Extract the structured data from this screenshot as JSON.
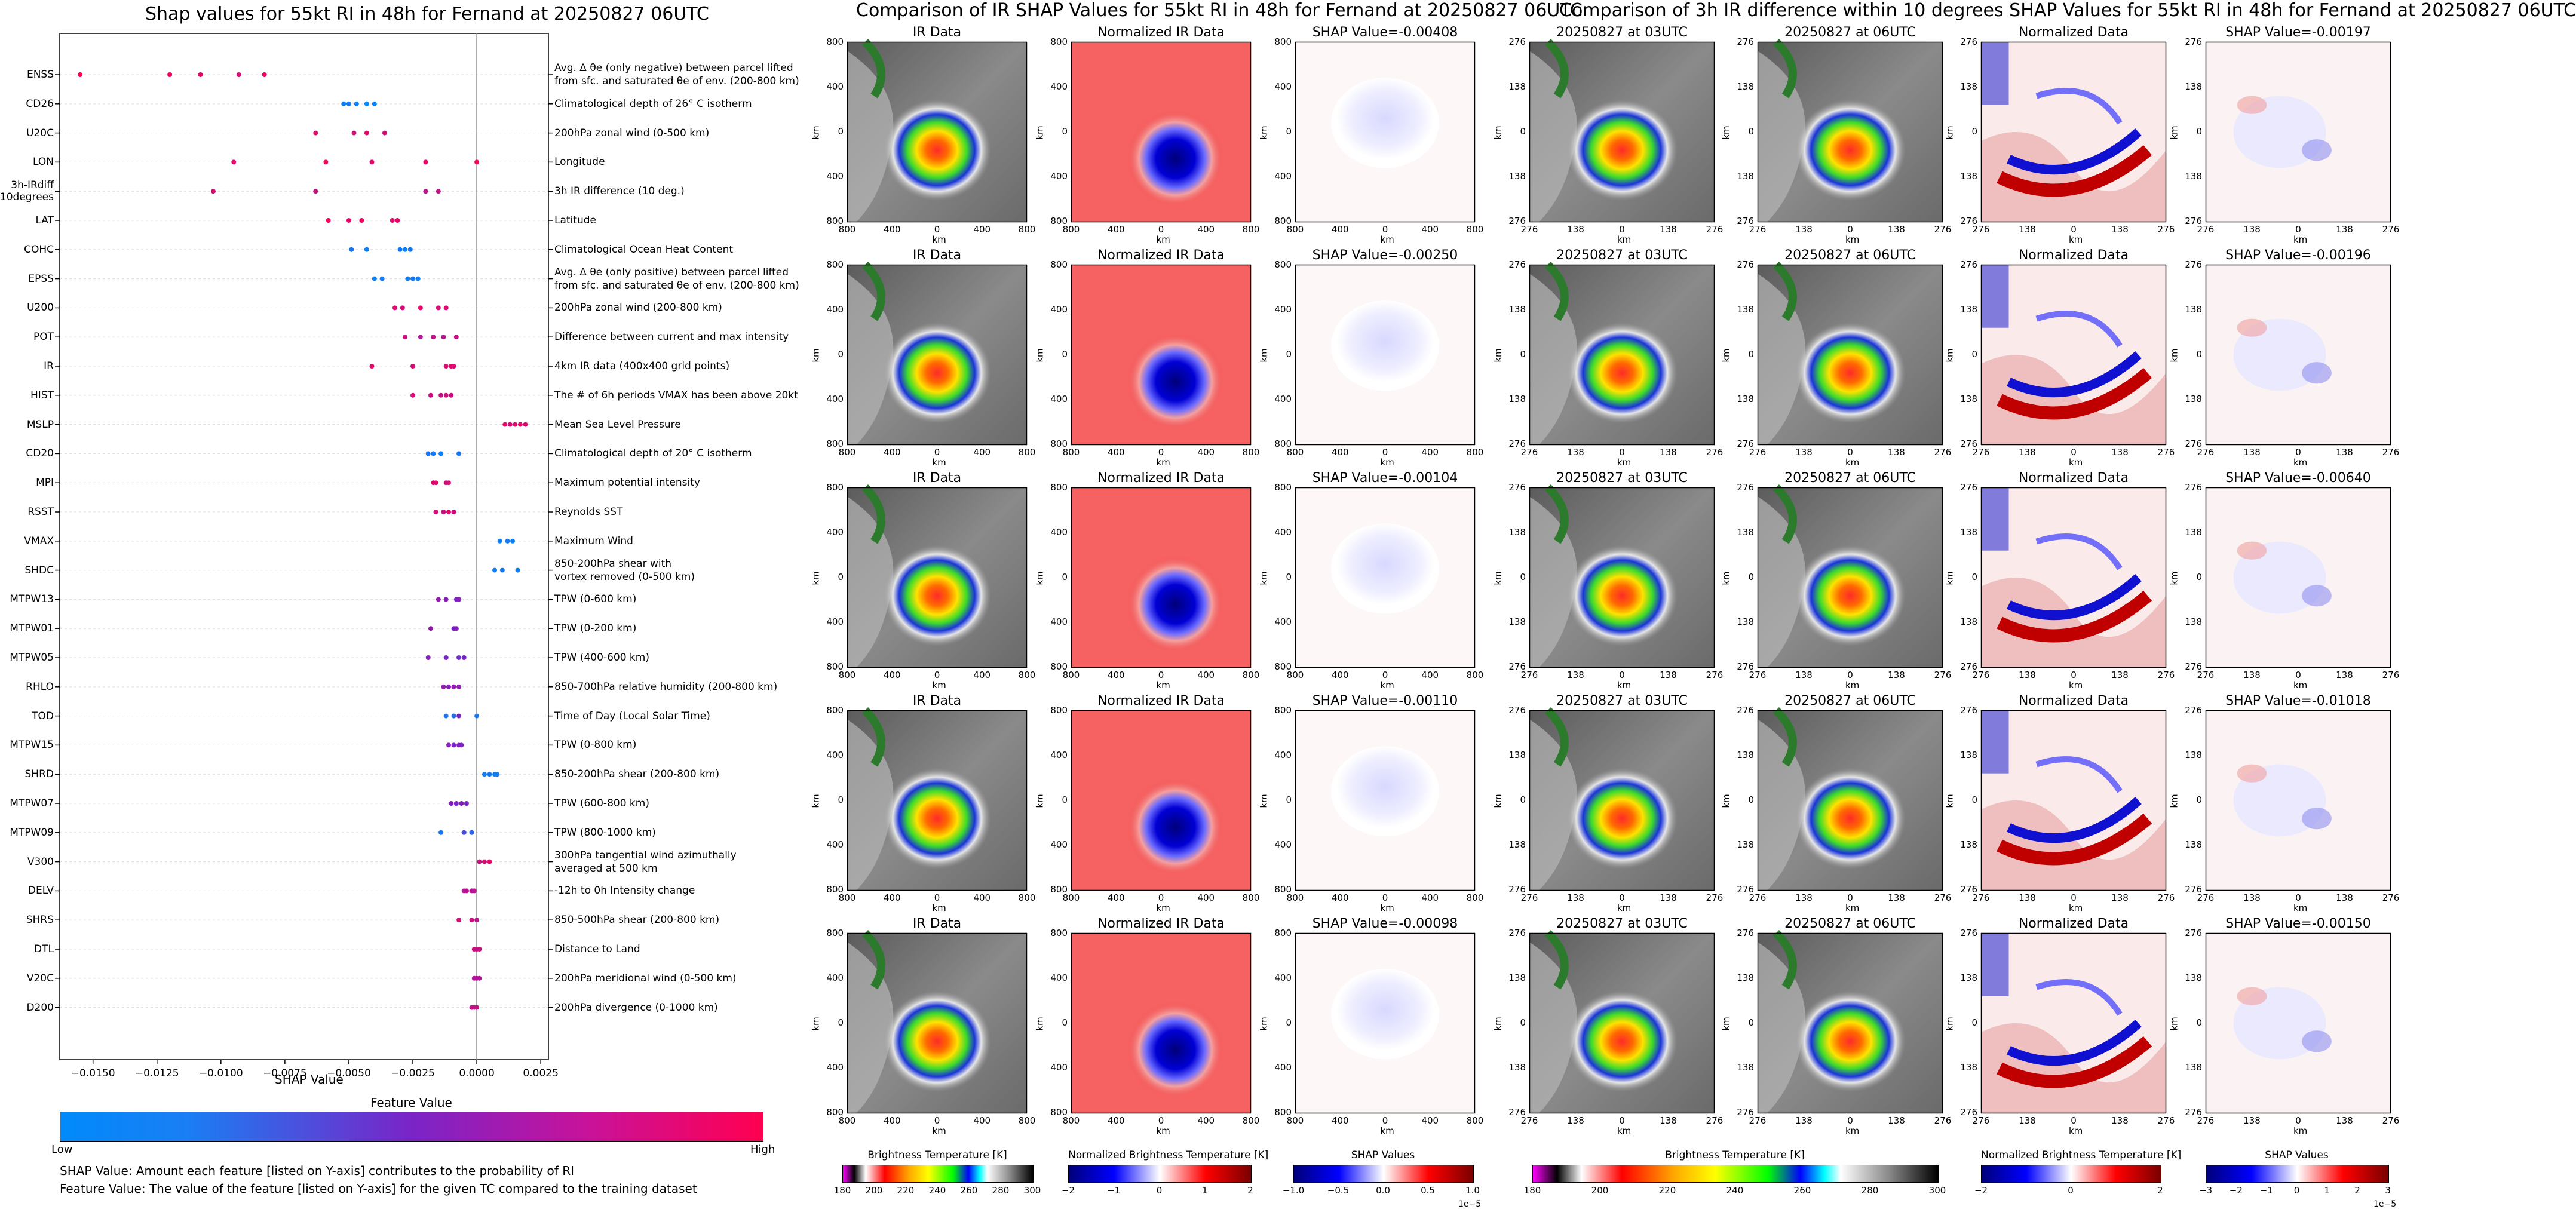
{
  "left": {
    "title": "Shap values for 55kt RI in 48h for Fernand at 20250827 06UTC",
    "xlabel": "SHAP Value",
    "xticks": [
      "−0.0150",
      "−0.0125",
      "−0.0100",
      "−0.0075",
      "−0.0050",
      "−0.0025",
      "0.0000",
      "0.0025"
    ],
    "colorbar_title": "Feature Value",
    "colorbar_low": "Low",
    "colorbar_high": "High",
    "note1": "SHAP Value: Amount each feature [listed on Y-axis] contributes to the probability of RI",
    "note2": "Feature Value: The value of the feature [listed on Y-axis] for the given TC compared to the training dataset"
  },
  "chart_data": {
    "type": "scatter",
    "xlim": [
      -0.0163,
      0.0028
    ],
    "x_tick_values": [
      -0.015,
      -0.0125,
      -0.01,
      -0.0075,
      -0.005,
      -0.0025,
      0,
      0.0025
    ],
    "features": [
      {
        "name": "ENSS",
        "desc": "Avg. Δ θe (only negative) between parcel lifted|from sfc. and saturated θe of env. (200-800 km)",
        "points": [
          [
            -0.0155,
            1.0
          ],
          [
            -0.012,
            0.95
          ],
          [
            -0.0108,
            0.9
          ],
          [
            -0.0093,
            0.85
          ],
          [
            -0.0083,
            0.9
          ]
        ]
      },
      {
        "name": "CD26",
        "desc": "Climatological depth of 26° C isotherm",
        "points": [
          [
            -0.0052,
            0.05
          ],
          [
            -0.005,
            0.1
          ],
          [
            -0.0047,
            0.05
          ],
          [
            -0.0043,
            0.0
          ],
          [
            -0.004,
            0.02
          ]
        ]
      },
      {
        "name": "U20C",
        "desc": "200hPa zonal wind (0-500 km)",
        "points": [
          [
            -0.0063,
            0.9
          ],
          [
            -0.0048,
            0.85
          ],
          [
            -0.0043,
            0.9
          ],
          [
            -0.0036,
            0.85
          ]
        ]
      },
      {
        "name": "LON",
        "desc": "Longitude",
        "points": [
          [
            -0.0095,
            0.9
          ],
          [
            -0.0059,
            0.95
          ],
          [
            -0.0041,
            0.9
          ],
          [
            -0.002,
            0.92
          ],
          [
            0.0,
            0.95
          ]
        ]
      },
      {
        "name": "3h-IRdiff|10degrees",
        "desc": "3h IR difference (10 deg.)",
        "points": [
          [
            -0.0103,
            0.85
          ],
          [
            -0.0063,
            0.8
          ],
          [
            -0.002,
            0.75
          ],
          [
            -0.0015,
            0.78
          ]
        ]
      },
      {
        "name": "LAT",
        "desc": "Latitude",
        "points": [
          [
            -0.0058,
            0.95
          ],
          [
            -0.005,
            0.9
          ],
          [
            -0.0045,
            0.92
          ],
          [
            -0.0033,
            0.88
          ],
          [
            -0.0031,
            0.9
          ]
        ]
      },
      {
        "name": "COHC",
        "desc": "Climatological Ocean Heat Content",
        "points": [
          [
            -0.0049,
            0.1
          ],
          [
            -0.0043,
            0.05
          ],
          [
            -0.003,
            0.08
          ],
          [
            -0.0028,
            0.05
          ],
          [
            -0.0026,
            0.1
          ]
        ]
      },
      {
        "name": "EPSS",
        "desc": "Avg. Δ θe (only positive) between parcel lifted|from sfc. and saturated θe of env. (200-800 km)",
        "points": [
          [
            -0.004,
            0.05
          ],
          [
            -0.0037,
            0.08
          ],
          [
            -0.0027,
            0.05
          ],
          [
            -0.0025,
            0.1
          ],
          [
            -0.0023,
            0.07
          ]
        ]
      },
      {
        "name": "U200",
        "desc": "200hPa zonal wind (200-800 km)",
        "points": [
          [
            -0.0032,
            0.9
          ],
          [
            -0.0029,
            0.85
          ],
          [
            -0.0022,
            0.9
          ],
          [
            -0.0015,
            0.85
          ],
          [
            -0.0012,
            0.88
          ]
        ]
      },
      {
        "name": "POT",
        "desc": "Difference between current and max intensity",
        "points": [
          [
            -0.0028,
            0.8
          ],
          [
            -0.0022,
            0.7
          ],
          [
            -0.0017,
            0.75
          ],
          [
            -0.0013,
            0.72
          ],
          [
            -0.0008,
            0.78
          ]
        ]
      },
      {
        "name": "IR",
        "desc": "4km IR data (400x400 grid points)",
        "points": [
          [
            -0.0041,
            0.9
          ],
          [
            -0.0025,
            0.85
          ],
          [
            -0.0012,
            0.88
          ],
          [
            -0.001,
            0.9
          ],
          [
            -0.0009,
            0.86
          ]
        ]
      },
      {
        "name": "HIST",
        "desc": "The # of 6h periods VMAX has been above 20kt",
        "points": [
          [
            -0.0025,
            0.85
          ],
          [
            -0.0018,
            0.8
          ],
          [
            -0.0014,
            0.78
          ],
          [
            -0.0012,
            0.82
          ],
          [
            -0.001,
            0.8
          ]
        ]
      },
      {
        "name": "MSLP",
        "desc": "Mean Sea Level Pressure",
        "points": [
          [
            0.0011,
            0.9
          ],
          [
            0.0013,
            0.85
          ],
          [
            0.0015,
            0.88
          ],
          [
            0.0017,
            0.9
          ],
          [
            0.0019,
            0.86
          ]
        ]
      },
      {
        "name": "CD20",
        "desc": "Climatological depth of 20° C isotherm",
        "points": [
          [
            -0.0019,
            0.1
          ],
          [
            -0.0017,
            0.08
          ],
          [
            -0.0014,
            0.05
          ],
          [
            -0.0007,
            0.1
          ]
        ]
      },
      {
        "name": "MPI",
        "desc": "Maximum potential intensity",
        "points": [
          [
            -0.0017,
            0.85
          ],
          [
            -0.0016,
            0.9
          ],
          [
            -0.0012,
            0.8
          ],
          [
            -0.0011,
            0.85
          ]
        ]
      },
      {
        "name": "RSST",
        "desc": "Reynolds SST",
        "points": [
          [
            -0.0016,
            0.85
          ],
          [
            -0.0013,
            0.8
          ],
          [
            -0.0011,
            0.88
          ],
          [
            -0.0009,
            0.82
          ]
        ]
      },
      {
        "name": "VMAX",
        "desc": "Maximum Wind",
        "points": [
          [
            0.0009,
            0.05
          ],
          [
            0.0012,
            0.08
          ],
          [
            0.0014,
            0.05
          ]
        ]
      },
      {
        "name": "SHDC",
        "desc": "850-200hPa shear with|vortex removed (0-500 km)",
        "points": [
          [
            0.0007,
            0.05
          ],
          [
            0.001,
            0.08
          ],
          [
            0.0016,
            0.05
          ]
        ]
      },
      {
        "name": "MTPW13",
        "desc": "TPW (0-600 km)",
        "points": [
          [
            -0.0015,
            0.6
          ],
          [
            -0.0012,
            0.55
          ],
          [
            -0.0008,
            0.5
          ],
          [
            -0.0007,
            0.55
          ]
        ]
      },
      {
        "name": "MTPW01",
        "desc": "TPW (0-200 km)",
        "points": [
          [
            -0.0018,
            0.6
          ],
          [
            -0.0009,
            0.5
          ],
          [
            -0.0008,
            0.55
          ]
        ]
      },
      {
        "name": "MTPW05",
        "desc": "TPW (400-600 km)",
        "points": [
          [
            -0.0019,
            0.55
          ],
          [
            -0.0012,
            0.5
          ],
          [
            -0.0007,
            0.45
          ],
          [
            -0.0005,
            0.5
          ]
        ]
      },
      {
        "name": "RHLO",
        "desc": "850-700hPa relative humidity (200-800 km)",
        "points": [
          [
            -0.0013,
            0.6
          ],
          [
            -0.0011,
            0.55
          ],
          [
            -0.0009,
            0.6
          ],
          [
            -0.0007,
            0.58
          ]
        ]
      },
      {
        "name": "TOD",
        "desc": "Time of Day (Local Solar Time)",
        "points": [
          [
            -0.0012,
            0.1
          ],
          [
            -0.0009,
            0.15
          ],
          [
            -0.0007,
            0.5
          ],
          [
            0.0,
            0.1
          ]
        ]
      },
      {
        "name": "MTPW15",
        "desc": "TPW (0-800 km)",
        "points": [
          [
            -0.0011,
            0.55
          ],
          [
            -0.0009,
            0.5
          ],
          [
            -0.0007,
            0.55
          ],
          [
            -0.0006,
            0.5
          ]
        ]
      },
      {
        "name": "SHRD",
        "desc": "850-200hPa shear (200-800 km)",
        "points": [
          [
            0.0003,
            0.05
          ],
          [
            0.0005,
            0.08
          ],
          [
            0.0007,
            0.05
          ],
          [
            0.0008,
            0.08
          ]
        ]
      },
      {
        "name": "MTPW07",
        "desc": "TPW (600-800 km)",
        "points": [
          [
            -0.001,
            0.55
          ],
          [
            -0.0008,
            0.5
          ],
          [
            -0.0006,
            0.55
          ],
          [
            -0.0004,
            0.5
          ]
        ]
      },
      {
        "name": "MTPW09",
        "desc": "TPW (800-1000 km)",
        "points": [
          [
            -0.0014,
            0.1
          ],
          [
            -0.0005,
            0.3
          ],
          [
            -0.0002,
            0.2
          ]
        ]
      },
      {
        "name": "V300",
        "desc": "300hPa tangential wind azimuthally|averaged at 500 km",
        "points": [
          [
            0.0001,
            0.8
          ],
          [
            0.0003,
            0.85
          ],
          [
            0.0005,
            0.9
          ]
        ]
      },
      {
        "name": "DELV",
        "desc": "-12h to 0h Intensity change",
        "points": [
          [
            -0.0005,
            0.7
          ],
          [
            -0.0004,
            0.75
          ],
          [
            -0.0002,
            0.7
          ],
          [
            -0.0001,
            0.72
          ]
        ]
      },
      {
        "name": "SHRS",
        "desc": "850-500hPa shear (200-800 km)",
        "points": [
          [
            -0.0007,
            0.85
          ],
          [
            -0.0002,
            0.8
          ],
          [
            0.0,
            0.75
          ]
        ]
      },
      {
        "name": "DTL",
        "desc": "Distance to Land",
        "points": [
          [
            -0.0001,
            0.8
          ],
          [
            0.0,
            0.78
          ],
          [
            0.0001,
            0.8
          ]
        ]
      },
      {
        "name": "V20C",
        "desc": "200hPa meridional wind (0-500 km)",
        "points": [
          [
            -0.0001,
            0.7
          ],
          [
            0.0,
            0.72
          ],
          [
            0.0001,
            0.7
          ]
        ]
      },
      {
        "name": "D200",
        "desc": "200hPa divergence (0-1000 km)",
        "points": [
          [
            -0.0002,
            0.75
          ],
          [
            -0.0001,
            0.8
          ],
          [
            0.0,
            0.78
          ]
        ]
      }
    ]
  },
  "middle": {
    "title": "Comparison of IR SHAP Values for 55kt RI in 48h for Fernand at 20250827 06UTC",
    "col1_title": "IR Data",
    "col2_title": "Normalized IR Data",
    "shap_prefix": "SHAP Value=",
    "shap_values": [
      "-0.00408",
      "-0.00250",
      "-0.00104",
      "-0.00110",
      "-0.00098"
    ],
    "ticks": [
      "800",
      "400",
      "0",
      "400",
      "800"
    ],
    "axis_label": "km",
    "cb1_label": "Brightness Temperature [K]",
    "cb1_ticks": [
      "180",
      "200",
      "220",
      "240",
      "260",
      "280",
      "300"
    ],
    "cb2_label": "Normalized Brightness Temperature [K]",
    "cb2_ticks": [
      "−2",
      "−1",
      "0",
      "1",
      "2"
    ],
    "cb3_label": "SHAP Values",
    "cb3_ticks": [
      "−1.0",
      "−0.5",
      "0.0",
      "0.5",
      "1.0"
    ],
    "cb3_exp": "1e−5"
  },
  "right": {
    "title": "Comparison of 3h IR difference within 10 degrees SHAP Values for 55kt RI in 48h for Fernand at 20250827 06UTC",
    "col1_title": "20250827 at 03UTC",
    "col2_title": "20250827 at 06UTC",
    "col3_title": "Normalized Data",
    "shap_prefix": "SHAP Value=",
    "shap_values": [
      "-0.00197",
      "-0.00196",
      "-0.00640",
      "-0.01018",
      "-0.00150"
    ],
    "ticks": [
      "276",
      "138",
      "0",
      "138",
      "276"
    ],
    "axis_label": "km",
    "cb1_label": "Brightness Temperature [K]",
    "cb1_ticks": [
      "180",
      "200",
      "220",
      "240",
      "260",
      "280",
      "300"
    ],
    "cb2_label": "Normalized Brightness Temperature [K]",
    "cb2_ticks": [
      "−2",
      "0",
      "2"
    ],
    "cb3_label": "SHAP Values",
    "cb3_ticks": [
      "−3",
      "−2",
      "−1",
      "0",
      "1",
      "2",
      "3"
    ],
    "cb3_exp": "1e−5"
  },
  "colors": {
    "low": "#008afb",
    "mid": "#7a24c7",
    "high": "#ff0051"
  }
}
